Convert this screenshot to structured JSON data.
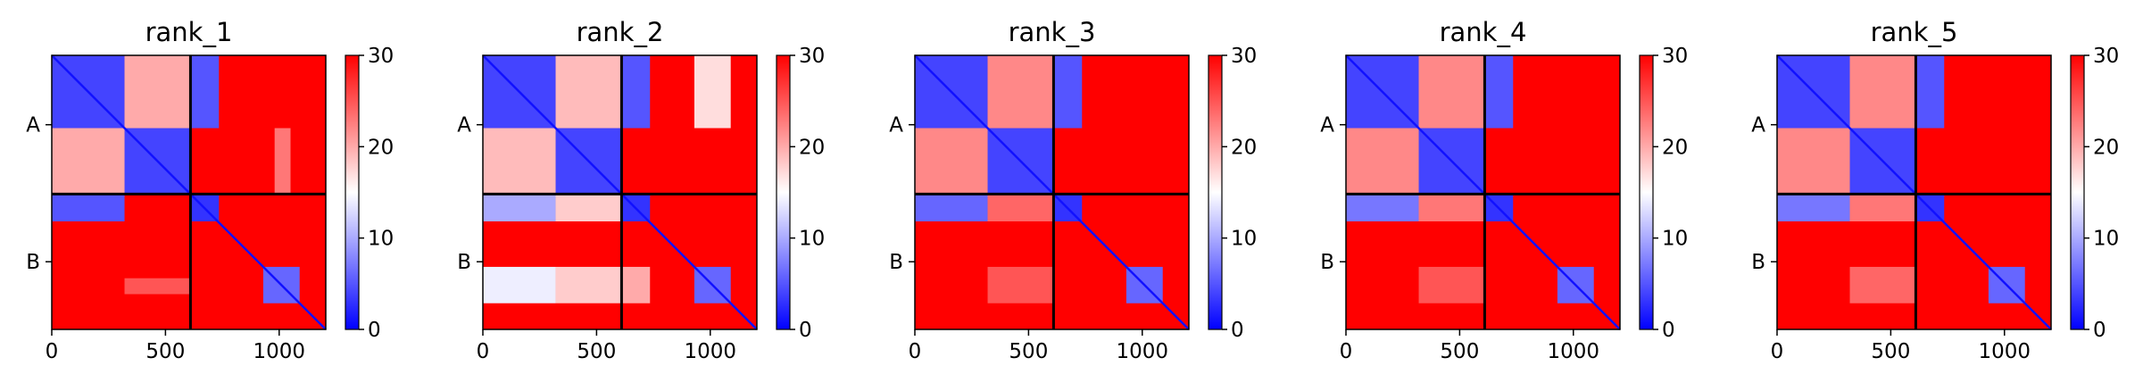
{
  "chart_data": [
    {
      "type": "heatmap",
      "title": "rank_1",
      "chains": [
        "A",
        "B"
      ],
      "chain_boundary": 610,
      "x_ticks": [
        0,
        500,
        1000
      ],
      "xlim": [
        0,
        1205
      ],
      "colorbar": {
        "ticks": [
          0,
          10,
          20,
          30
        ],
        "range": [
          0,
          30
        ],
        "colormap": "bwr"
      },
      "blocks": [
        {
          "x": [
            0,
            320
          ],
          "y": [
            0,
            320
          ],
          "value": 4
        },
        {
          "x": [
            320,
            610
          ],
          "y": [
            320,
            610
          ],
          "value": 4
        },
        {
          "x": [
            320,
            610
          ],
          "y": [
            0,
            320
          ],
          "value": 20
        },
        {
          "x": [
            0,
            320
          ],
          "y": [
            320,
            610
          ],
          "value": 20
        },
        {
          "x": [
            610,
            735
          ],
          "y": [
            0,
            320
          ],
          "value": 5
        },
        {
          "x": [
            0,
            320
          ],
          "y": [
            610,
            730
          ],
          "value": 5
        },
        {
          "x": [
            610,
            735
          ],
          "y": [
            610,
            730
          ],
          "value": 3
        },
        {
          "x": [
            930,
            1090
          ],
          "y": [
            930,
            1090
          ],
          "value": 6
        },
        {
          "x": [
            980,
            1050
          ],
          "y": [
            320,
            610
          ],
          "value": 23
        },
        {
          "x": [
            320,
            610
          ],
          "y": [
            980,
            1050
          ],
          "value": 25
        }
      ]
    },
    {
      "type": "heatmap",
      "title": "rank_2",
      "chains": [
        "A",
        "B"
      ],
      "chain_boundary": 610,
      "x_ticks": [
        0,
        500,
        1000
      ],
      "xlim": [
        0,
        1205
      ],
      "colorbar": {
        "ticks": [
          0,
          10,
          20,
          30
        ],
        "range": [
          0,
          30
        ],
        "colormap": "bwr"
      },
      "blocks": [
        {
          "x": [
            0,
            320
          ],
          "y": [
            0,
            320
          ],
          "value": 4
        },
        {
          "x": [
            320,
            610
          ],
          "y": [
            320,
            610
          ],
          "value": 4
        },
        {
          "x": [
            320,
            610
          ],
          "y": [
            0,
            320
          ],
          "value": 19
        },
        {
          "x": [
            0,
            320
          ],
          "y": [
            320,
            610
          ],
          "value": 19
        },
        {
          "x": [
            610,
            735
          ],
          "y": [
            0,
            320
          ],
          "value": 5
        },
        {
          "x": [
            0,
            320
          ],
          "y": [
            610,
            730
          ],
          "value": 10
        },
        {
          "x": [
            320,
            610
          ],
          "y": [
            610,
            730
          ],
          "value": 18
        },
        {
          "x": [
            610,
            735
          ],
          "y": [
            610,
            730
          ],
          "value": 3
        },
        {
          "x": [
            930,
            1090
          ],
          "y": [
            930,
            1090
          ],
          "value": 6
        },
        {
          "x": [
            0,
            320
          ],
          "y": [
            930,
            1090
          ],
          "value": 14
        },
        {
          "x": [
            320,
            610
          ],
          "y": [
            930,
            1090
          ],
          "value": 18
        },
        {
          "x": [
            610,
            735
          ],
          "y": [
            930,
            1090
          ],
          "value": 20
        },
        {
          "x": [
            930,
            1090
          ],
          "y": [
            0,
            320
          ],
          "value": 17
        }
      ]
    },
    {
      "type": "heatmap",
      "title": "rank_3",
      "chains": [
        "A",
        "B"
      ],
      "chain_boundary": 610,
      "x_ticks": [
        0,
        500,
        1000
      ],
      "xlim": [
        0,
        1205
      ],
      "colorbar": {
        "ticks": [
          0,
          10,
          20,
          30
        ],
        "range": [
          0,
          30
        ],
        "colormap": "bwr"
      },
      "blocks": [
        {
          "x": [
            0,
            320
          ],
          "y": [
            0,
            320
          ],
          "value": 4
        },
        {
          "x": [
            320,
            610
          ],
          "y": [
            320,
            610
          ],
          "value": 4
        },
        {
          "x": [
            320,
            610
          ],
          "y": [
            0,
            320
          ],
          "value": 22
        },
        {
          "x": [
            0,
            320
          ],
          "y": [
            320,
            610
          ],
          "value": 22
        },
        {
          "x": [
            610,
            735
          ],
          "y": [
            0,
            320
          ],
          "value": 5
        },
        {
          "x": [
            0,
            320
          ],
          "y": [
            610,
            730
          ],
          "value": 6
        },
        {
          "x": [
            320,
            610
          ],
          "y": [
            610,
            730
          ],
          "value": 24
        },
        {
          "x": [
            610,
            735
          ],
          "y": [
            610,
            730
          ],
          "value": 3
        },
        {
          "x": [
            930,
            1090
          ],
          "y": [
            930,
            1090
          ],
          "value": 6
        },
        {
          "x": [
            320,
            610
          ],
          "y": [
            930,
            1090
          ],
          "value": 25
        }
      ]
    },
    {
      "type": "heatmap",
      "title": "rank_4",
      "chains": [
        "A",
        "B"
      ],
      "chain_boundary": 610,
      "x_ticks": [
        0,
        500,
        1000
      ],
      "xlim": [
        0,
        1205
      ],
      "colorbar": {
        "ticks": [
          0,
          10,
          20,
          30
        ],
        "range": [
          0,
          30
        ],
        "colormap": "bwr"
      },
      "blocks": [
        {
          "x": [
            0,
            320
          ],
          "y": [
            0,
            320
          ],
          "value": 4
        },
        {
          "x": [
            320,
            610
          ],
          "y": [
            320,
            610
          ],
          "value": 4
        },
        {
          "x": [
            320,
            610
          ],
          "y": [
            0,
            320
          ],
          "value": 22
        },
        {
          "x": [
            0,
            320
          ],
          "y": [
            320,
            610
          ],
          "value": 22
        },
        {
          "x": [
            610,
            735
          ],
          "y": [
            0,
            320
          ],
          "value": 5
        },
        {
          "x": [
            0,
            320
          ],
          "y": [
            610,
            730
          ],
          "value": 7
        },
        {
          "x": [
            320,
            610
          ],
          "y": [
            610,
            730
          ],
          "value": 23
        },
        {
          "x": [
            610,
            735
          ],
          "y": [
            610,
            730
          ],
          "value": 3
        },
        {
          "x": [
            930,
            1090
          ],
          "y": [
            930,
            1090
          ],
          "value": 6
        },
        {
          "x": [
            320,
            610
          ],
          "y": [
            930,
            1090
          ],
          "value": 25
        }
      ]
    },
    {
      "type": "heatmap",
      "title": "rank_5",
      "chains": [
        "A",
        "B"
      ],
      "chain_boundary": 610,
      "x_ticks": [
        0,
        500,
        1000
      ],
      "xlim": [
        0,
        1205
      ],
      "colorbar": {
        "ticks": [
          0,
          10,
          20,
          30
        ],
        "range": [
          0,
          30
        ],
        "colormap": "bwr"
      },
      "blocks": [
        {
          "x": [
            0,
            320
          ],
          "y": [
            0,
            320
          ],
          "value": 4
        },
        {
          "x": [
            320,
            610
          ],
          "y": [
            320,
            610
          ],
          "value": 4
        },
        {
          "x": [
            320,
            610
          ],
          "y": [
            0,
            320
          ],
          "value": 22
        },
        {
          "x": [
            0,
            320
          ],
          "y": [
            320,
            610
          ],
          "value": 22
        },
        {
          "x": [
            610,
            735
          ],
          "y": [
            0,
            320
          ],
          "value": 5
        },
        {
          "x": [
            0,
            320
          ],
          "y": [
            610,
            730
          ],
          "value": 7
        },
        {
          "x": [
            320,
            610
          ],
          "y": [
            610,
            730
          ],
          "value": 23
        },
        {
          "x": [
            610,
            735
          ],
          "y": [
            610,
            730
          ],
          "value": 3
        },
        {
          "x": [
            930,
            1090
          ],
          "y": [
            930,
            1090
          ],
          "value": 6
        },
        {
          "x": [
            320,
            610
          ],
          "y": [
            930,
            1090
          ],
          "value": 24
        }
      ]
    }
  ]
}
